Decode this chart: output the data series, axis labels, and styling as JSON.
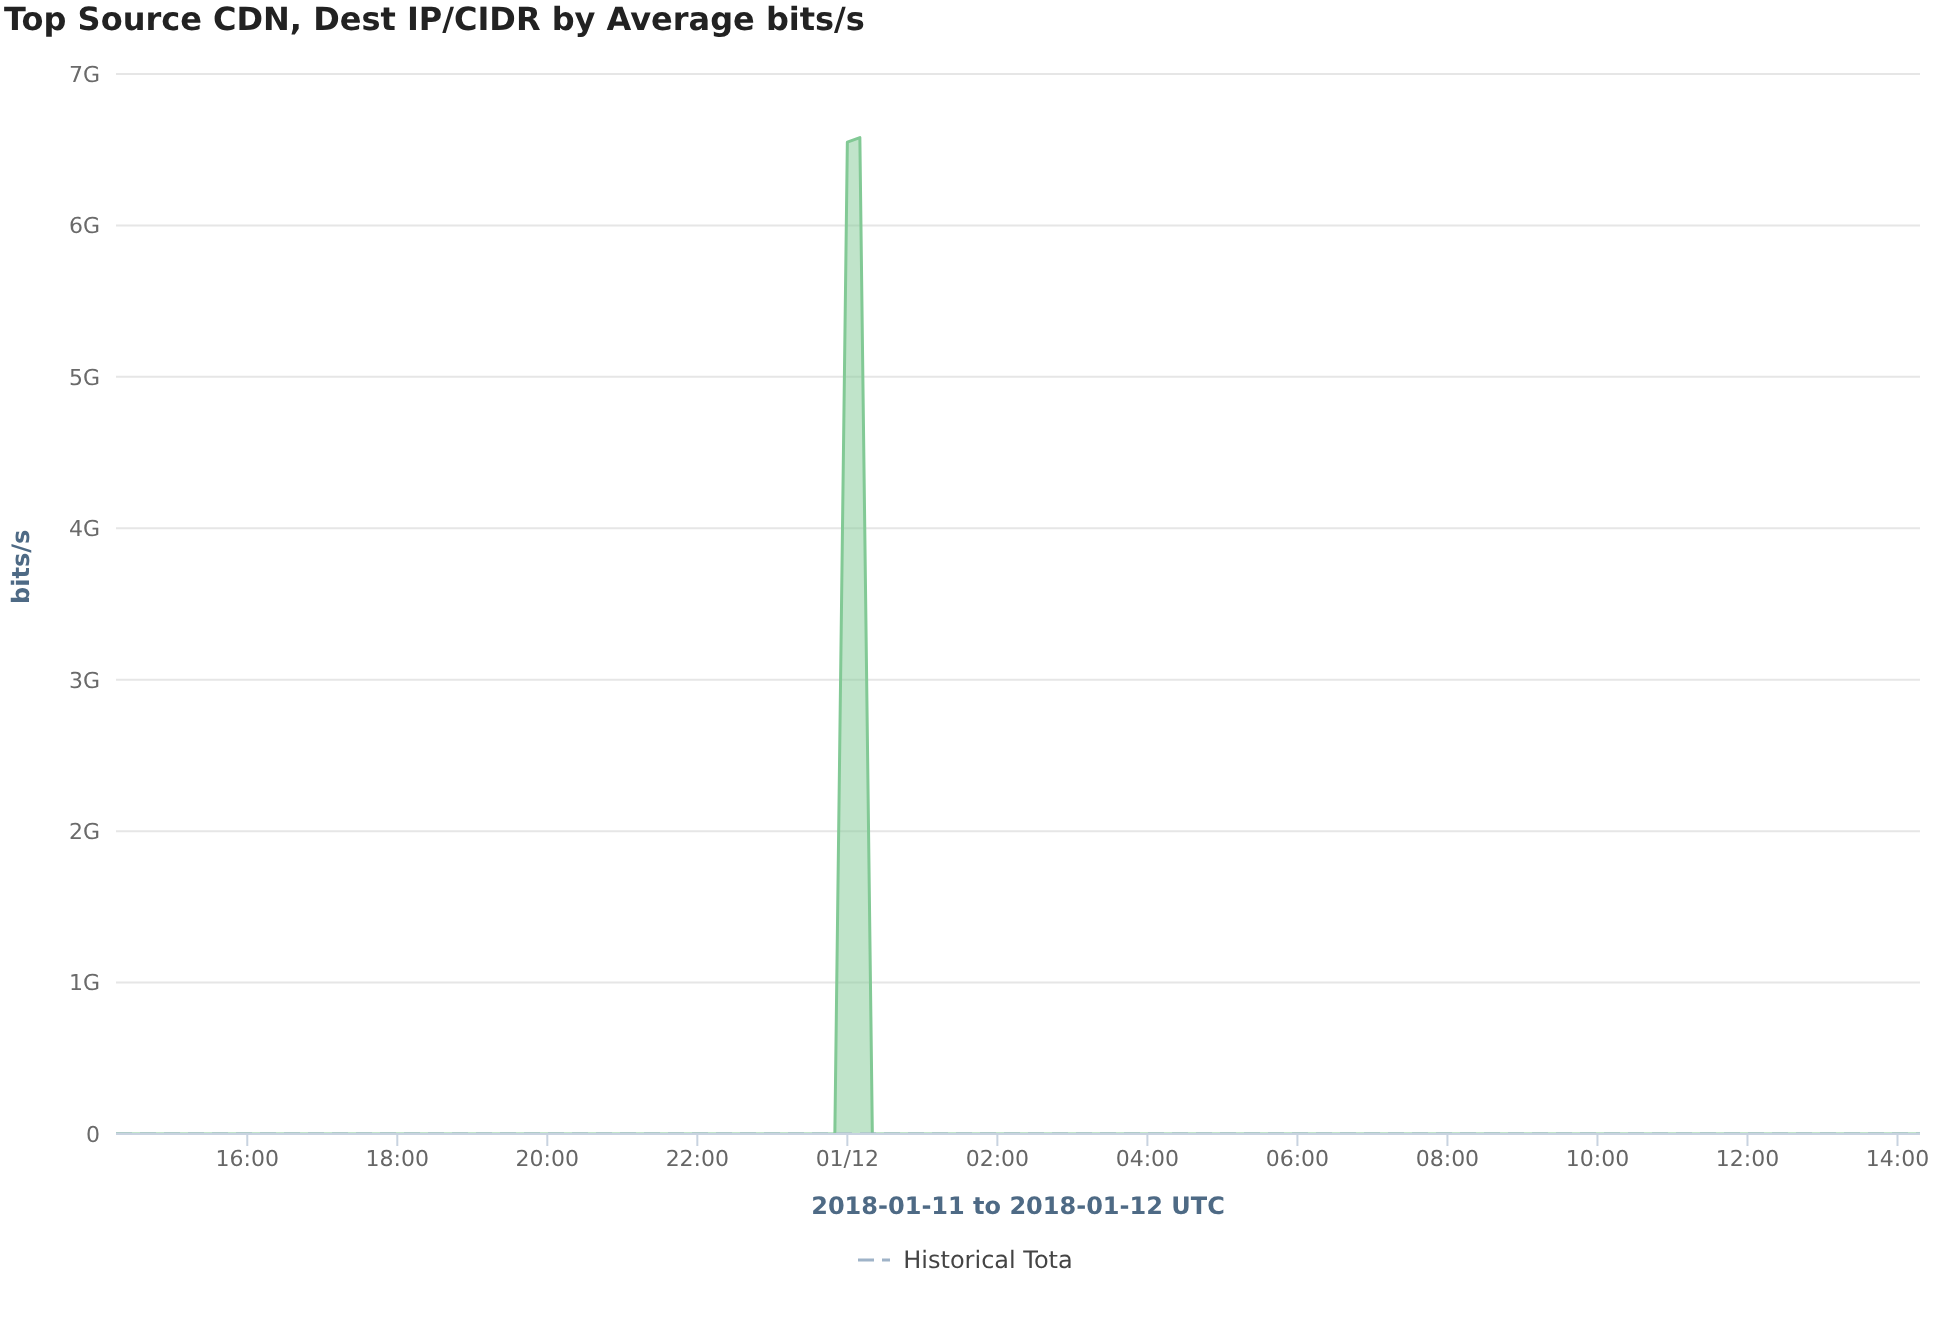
{
  "chart_data": {
    "type": "area",
    "title": "Top Source CDN, Dest IP/CIDR by Average bits/s",
    "xlabel": "2018-01-11 to 2018-01-12 UTC",
    "ylabel": "bits/s",
    "xlim": [
      "2018-01-11T14:15",
      "2018-01-12T14:18"
    ],
    "xticks": [
      {
        "value": "2018-01-11T16:00",
        "label": "16:00"
      },
      {
        "value": "2018-01-11T18:00",
        "label": "18:00"
      },
      {
        "value": "2018-01-11T20:00",
        "label": "20:00"
      },
      {
        "value": "2018-01-11T22:00",
        "label": "22:00"
      },
      {
        "value": "2018-01-12T00:00",
        "label": "01/12"
      },
      {
        "value": "2018-01-12T02:00",
        "label": "02:00"
      },
      {
        "value": "2018-01-12T04:00",
        "label": "04:00"
      },
      {
        "value": "2018-01-12T06:00",
        "label": "06:00"
      },
      {
        "value": "2018-01-12T08:00",
        "label": "08:00"
      },
      {
        "value": "2018-01-12T10:00",
        "label": "10:00"
      },
      {
        "value": "2018-01-12T12:00",
        "label": "12:00"
      },
      {
        "value": "2018-01-12T14:00",
        "label": "14:00"
      }
    ],
    "ylim": [
      0,
      7
    ],
    "yticks": [
      0,
      {
        "value": 1,
        "label": "1G"
      },
      {
        "value": 2,
        "label": "2G"
      },
      {
        "value": 3,
        "label": "3G"
      },
      {
        "value": 4,
        "label": "4G"
      },
      {
        "value": 5,
        "label": "5G"
      },
      {
        "value": 6,
        "label": "6G"
      },
      {
        "value": 7,
        "label": "7G"
      }
    ],
    "grid": "y",
    "legend": "bottom",
    "series": [
      {
        "name": "Historical Tota",
        "type": "line",
        "line_style": "dashed",
        "color": "#9fb3c8",
        "x": [
          "2018-01-11T14:15",
          "2018-01-12T14:18"
        ],
        "values": [
          0,
          0
        ]
      },
      {
        "color": "#82c995",
        "x": [
          "2018-01-11T14:15",
          "2018-01-11T23:50",
          "2018-01-12T00:00",
          "2018-01-12T00:10",
          "2018-01-12T00:20",
          "2018-01-12T14:18"
        ],
        "values": [
          0,
          0,
          6.55,
          6.58,
          0,
          0
        ]
      }
    ]
  }
}
